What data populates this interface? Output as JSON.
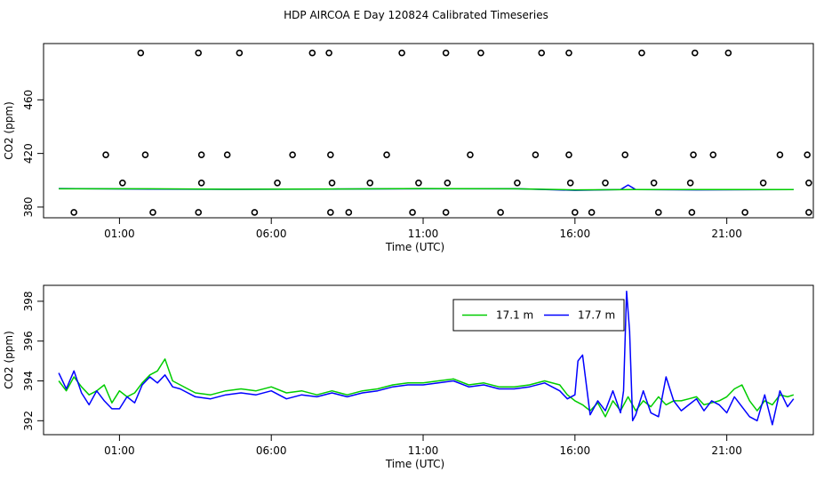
{
  "title": "HDP AIRCOA E  Day 120824  Calibrated Timeseries",
  "chart_data": [
    {
      "type": "scatter",
      "xlabel": "Time (UTC)",
      "ylabel": "CO2 (ppm)",
      "x_unit": "hours UTC",
      "xlim": [
        -1.5,
        23.85
      ],
      "ylim": [
        372,
        502
      ],
      "x_ticks": [
        1,
        6,
        11,
        16,
        21
      ],
      "x_tick_labels": [
        "01:00",
        "06:00",
        "11:00",
        "16:00",
        "21:00"
      ],
      "y_ticks": [
        380,
        420,
        460
      ],
      "y_tick_labels": [
        "380",
        "420",
        "460"
      ],
      "grid": false,
      "series": [
        {
          "color": "#0000ff",
          "role": "line",
          "x": [
            -1.0,
            2.0,
            5.0,
            8.0,
            11.0,
            14.0,
            16.0,
            17.5,
            17.75,
            18.0,
            20.0,
            23.2
          ],
          "y": [
            393.8,
            393.4,
            393.2,
            393.4,
            393.6,
            393.7,
            392.5,
            393.0,
            396.5,
            393.0,
            392.8,
            393.0
          ]
        },
        {
          "color": "#00cc00",
          "role": "line",
          "x": [
            -1.0,
            2.0,
            5.0,
            8.0,
            11.0,
            14.0,
            16.0,
            18.0,
            20.0,
            23.2
          ],
          "y": [
            393.6,
            393.6,
            393.3,
            393.5,
            393.8,
            393.6,
            392.8,
            393.0,
            393.1,
            393.1
          ]
        },
        {
          "color": "#000000",
          "role": "points",
          "x": [
            1.1,
            3.7,
            6.2,
            8.0,
            9.25,
            10.85,
            11.8,
            14.1,
            15.85,
            17.0,
            18.6,
            19.8,
            22.2,
            23.7,
            0.55,
            1.85,
            3.7,
            4.55,
            6.7,
            7.95,
            9.8,
            12.55,
            14.7,
            15.8,
            17.65,
            19.9,
            20.55,
            22.75,
            23.65,
            -0.5,
            2.1,
            3.6,
            5.45,
            7.95,
            8.55,
            10.65,
            11.75,
            13.55,
            16.0,
            16.55,
            18.75,
            19.85,
            21.6,
            23.7,
            1.7,
            3.6,
            4.95,
            7.35,
            7.9,
            10.3,
            11.75,
            12.9,
            14.9,
            15.8,
            18.2,
            19.95,
            21.05
          ],
          "y": [
            398,
            398,
            398,
            398,
            398,
            398,
            398,
            398,
            398,
            398,
            398,
            398,
            398,
            398,
            419,
            419,
            419,
            419,
            419,
            419,
            419,
            419,
            419,
            419,
            419,
            419,
            419,
            419,
            419,
            376,
            376,
            376,
            376,
            376,
            376,
            376,
            376,
            376,
            376,
            376,
            376,
            376,
            376,
            376,
            495,
            495,
            495,
            495,
            495,
            495,
            495,
            495,
            495,
            495,
            495,
            495,
            495
          ]
        }
      ]
    },
    {
      "type": "line",
      "xlabel": "Time (UTC)",
      "ylabel": "CO2 (ppm)",
      "x_unit": "hours UTC",
      "xlim": [
        -1.5,
        23.85
      ],
      "ylim": [
        391.3,
        398.8
      ],
      "x_ticks": [
        1,
        6,
        11,
        16,
        21
      ],
      "x_tick_labels": [
        "01:00",
        "06:00",
        "11:00",
        "16:00",
        "21:00"
      ],
      "y_ticks": [
        392,
        394,
        396,
        398
      ],
      "y_tick_labels": [
        "392",
        "394",
        "396",
        "398"
      ],
      "grid": false,
      "legend_position": "top-right",
      "series": [
        {
          "name": "17.1 m",
          "color": "#00cc00",
          "x": [
            -1.0,
            -0.75,
            -0.5,
            -0.25,
            0.0,
            0.25,
            0.5,
            0.75,
            1.0,
            1.25,
            1.5,
            1.75,
            2.0,
            2.25,
            2.5,
            2.75,
            3.0,
            3.5,
            4.0,
            4.5,
            5.0,
            5.5,
            6.0,
            6.5,
            7.0,
            7.5,
            8.0,
            8.5,
            9.0,
            9.5,
            10.0,
            10.5,
            11.0,
            11.5,
            12.0,
            12.5,
            13.0,
            13.5,
            14.0,
            14.5,
            15.0,
            15.5,
            15.75,
            16.0,
            16.25,
            16.5,
            16.75,
            17.0,
            17.25,
            17.5,
            17.75,
            18.0,
            18.25,
            18.5,
            18.75,
            19.0,
            19.25,
            19.5,
            19.75,
            20.0,
            20.25,
            20.5,
            20.75,
            21.0,
            21.25,
            21.5,
            21.75,
            22.0,
            22.25,
            22.5,
            22.75,
            23.0,
            23.2
          ],
          "y": [
            394.0,
            393.5,
            394.2,
            393.7,
            393.3,
            393.5,
            393.8,
            392.9,
            393.5,
            393.2,
            393.4,
            393.9,
            394.3,
            394.5,
            395.1,
            394.0,
            393.8,
            393.4,
            393.3,
            393.5,
            393.6,
            393.5,
            393.7,
            393.4,
            393.5,
            393.3,
            393.5,
            393.3,
            393.5,
            393.6,
            393.8,
            393.9,
            393.9,
            394.0,
            394.1,
            393.8,
            393.9,
            393.7,
            393.7,
            393.8,
            394.0,
            393.8,
            393.3,
            393.0,
            392.8,
            392.5,
            392.9,
            392.2,
            393.0,
            392.5,
            393.2,
            392.5,
            393.0,
            392.7,
            393.2,
            392.8,
            393.0,
            393.0,
            393.1,
            393.2,
            392.8,
            392.9,
            393.0,
            393.2,
            393.6,
            393.8,
            393.0,
            392.5,
            393.0,
            392.8,
            393.3,
            393.2,
            393.3
          ]
        },
        {
          "name": "17.7 m",
          "color": "#0000ff",
          "x": [
            -1.0,
            -0.75,
            -0.5,
            -0.25,
            0.0,
            0.25,
            0.5,
            0.75,
            1.0,
            1.25,
            1.5,
            1.75,
            2.0,
            2.25,
            2.5,
            2.75,
            3.0,
            3.5,
            4.0,
            4.5,
            5.0,
            5.5,
            6.0,
            6.5,
            7.0,
            7.5,
            8.0,
            8.5,
            9.0,
            9.5,
            10.0,
            10.5,
            11.0,
            11.5,
            12.0,
            12.5,
            13.0,
            13.5,
            14.0,
            14.5,
            15.0,
            15.5,
            15.75,
            16.0,
            16.1,
            16.25,
            16.5,
            16.75,
            17.0,
            17.25,
            17.5,
            17.6,
            17.7,
            17.8,
            17.9,
            18.0,
            18.25,
            18.5,
            18.75,
            19.0,
            19.25,
            19.5,
            19.75,
            20.0,
            20.25,
            20.5,
            20.75,
            21.0,
            21.25,
            21.5,
            21.75,
            22.0,
            22.25,
            22.5,
            22.75,
            23.0,
            23.2
          ],
          "y": [
            394.4,
            393.6,
            394.5,
            393.4,
            392.8,
            393.5,
            393.0,
            392.6,
            392.6,
            393.2,
            392.9,
            393.8,
            394.2,
            393.9,
            394.3,
            393.7,
            393.6,
            393.2,
            393.1,
            393.3,
            393.4,
            393.3,
            393.5,
            393.1,
            393.3,
            393.2,
            393.4,
            393.2,
            393.4,
            393.5,
            393.7,
            393.8,
            393.8,
            393.9,
            394.0,
            393.7,
            393.8,
            393.6,
            393.6,
            393.7,
            393.9,
            393.5,
            393.1,
            393.3,
            395.0,
            395.3,
            392.3,
            393.0,
            392.5,
            393.5,
            392.4,
            393.5,
            398.5,
            396.5,
            392.0,
            392.3,
            393.5,
            392.4,
            392.2,
            394.2,
            393.0,
            392.5,
            392.8,
            393.1,
            392.5,
            393.0,
            392.8,
            392.4,
            393.2,
            392.7,
            392.2,
            392.0,
            393.3,
            391.8,
            393.5,
            392.7,
            393.1
          ]
        }
      ]
    }
  ]
}
